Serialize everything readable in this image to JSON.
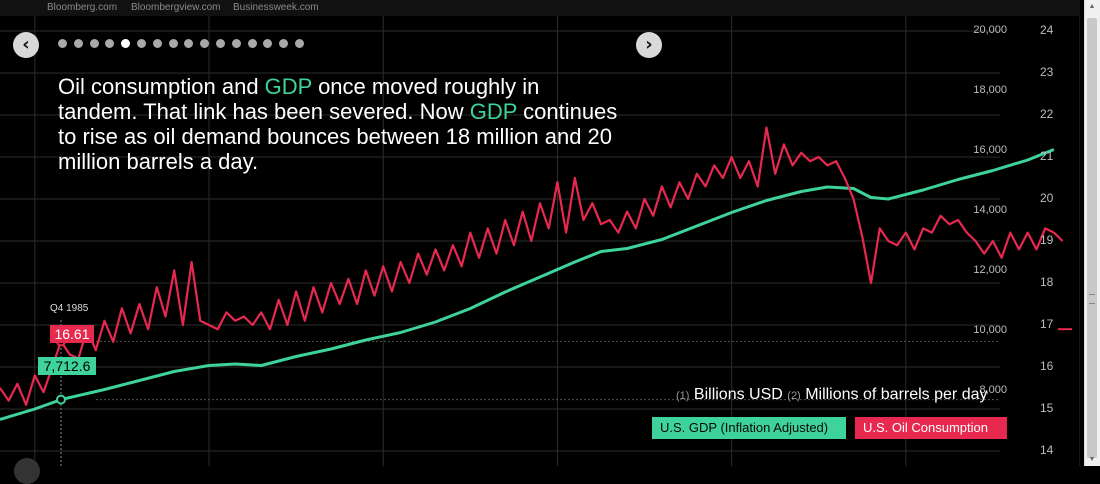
{
  "topbar": {
    "links": [
      "Bloomberg.com",
      "Bloombergview.com",
      "Businessweek.com"
    ]
  },
  "nav": {
    "prev_glyph": "‹",
    "next_glyph": "›",
    "dot_count": 16,
    "active_dot_index": 4
  },
  "headline": {
    "part1": "Oil consumption and ",
    "hl1": "GDP",
    "part2": " once moved roughly in tandem. That link has been severed. Now ",
    "hl2": "GDP",
    "part3": " continues to rise as oil demand bounces between 18 million and 20 million barrels a day."
  },
  "units": {
    "n1": "(1)",
    "label1": "Billions USD",
    "n2": "(2)",
    "label2": "Millions of barrels per day"
  },
  "legend": {
    "gdp": "U.S. GDP (Inflation Adjusted)",
    "oil": "U.S. Oil Consumption"
  },
  "tooltip": {
    "date": "Q4 1985",
    "oil_value": "16.61",
    "gdp_value": "7,712.6"
  },
  "colors": {
    "gdp": "#3ed39a",
    "oil": "#e8294f",
    "grid": "#2c2c2c",
    "background": "#000000"
  },
  "chart_data": {
    "type": "line",
    "x_range": [
      1984.0,
      2015.0
    ],
    "y_left": {
      "label": "Billions USD",
      "range": [
        6000,
        20000
      ],
      "ticks": [
        "8,000",
        "10,000",
        "12,000",
        "14,000",
        "16,000",
        "18,000",
        "20,000"
      ]
    },
    "y_right": {
      "label": "Millions of barrels per day",
      "range": [
        14,
        24
      ],
      "ticks": [
        "14",
        "15",
        "16",
        "17",
        "18",
        "19",
        "20",
        "21",
        "22",
        "23",
        "24"
      ]
    },
    "series": [
      {
        "name": "U.S. GDP (Inflation Adjusted)",
        "axis": "left",
        "x": [
          1984.0,
          1985.0,
          1985.75,
          1987.0,
          1988.0,
          1989.0,
          1990.0,
          1990.75,
          1991.5,
          1992.5,
          1993.5,
          1994.5,
          1995.5,
          1996.5,
          1997.5,
          1998.5,
          1999.5,
          2000.5,
          2001.25,
          2002.0,
          2003.0,
          2004.0,
          2005.0,
          2006.0,
          2007.0,
          2007.75,
          2008.5,
          2009.0,
          2009.5,
          2010.5,
          2011.5,
          2012.5,
          2013.5,
          2014.25
        ],
        "y": [
          7050,
          7400,
          7712.6,
          8050,
          8350,
          8650,
          8850,
          8900,
          8850,
          9150,
          9400,
          9700,
          9950,
          10300,
          10750,
          11300,
          11800,
          12300,
          12650,
          12750,
          13050,
          13500,
          13950,
          14350,
          14650,
          14800,
          14750,
          14450,
          14400,
          14700,
          15050,
          15350,
          15700,
          16050
        ]
      },
      {
        "name": "U.S. Oil Consumption",
        "axis": "right",
        "x": [
          1984.0,
          1984.25,
          1984.5,
          1984.75,
          1985.0,
          1985.25,
          1985.5,
          1985.75,
          1986.0,
          1986.25,
          1986.5,
          1986.75,
          1987.0,
          1987.25,
          1987.5,
          1987.75,
          1988.0,
          1988.25,
          1988.5,
          1988.75,
          1989.0,
          1989.25,
          1989.5,
          1989.75,
          1990.0,
          1990.25,
          1990.5,
          1990.75,
          1991.0,
          1991.25,
          1991.5,
          1991.75,
          1992.0,
          1992.25,
          1992.5,
          1992.75,
          1993.0,
          1993.25,
          1993.5,
          1993.75,
          1994.0,
          1994.25,
          1994.5,
          1994.75,
          1995.0,
          1995.25,
          1995.5,
          1995.75,
          1996.0,
          1996.25,
          1996.5,
          1996.75,
          1997.0,
          1997.25,
          1997.5,
          1997.75,
          1998.0,
          1998.25,
          1998.5,
          1998.75,
          1999.0,
          1999.25,
          1999.5,
          1999.75,
          2000.0,
          2000.25,
          2000.5,
          2000.75,
          2001.0,
          2001.25,
          2001.5,
          2001.75,
          2002.0,
          2002.25,
          2002.5,
          2002.75,
          2003.0,
          2003.25,
          2003.5,
          2003.75,
          2004.0,
          2004.25,
          2004.5,
          2004.75,
          2005.0,
          2005.25,
          2005.5,
          2005.75,
          2006.0,
          2006.25,
          2006.5,
          2006.75,
          2007.0,
          2007.25,
          2007.5,
          2007.75,
          2008.0,
          2008.25,
          2008.5,
          2008.75,
          2009.0,
          2009.25,
          2009.5,
          2009.75,
          2010.0,
          2010.25,
          2010.5,
          2010.75,
          2011.0,
          2011.25,
          2011.5,
          2011.75,
          2012.0,
          2012.25,
          2012.5,
          2012.75,
          2013.0,
          2013.25,
          2013.5,
          2013.75,
          2014.0,
          2014.25,
          2014.5
        ],
        "y": [
          15.5,
          15.2,
          15.6,
          15.1,
          15.8,
          15.4,
          16.0,
          16.61,
          16.3,
          16.2,
          16.9,
          16.4,
          17.1,
          16.6,
          17.4,
          16.8,
          17.5,
          16.9,
          17.9,
          17.2,
          18.3,
          17.0,
          18.5,
          17.1,
          17.0,
          16.9,
          17.3,
          17.1,
          17.2,
          17.0,
          17.3,
          16.9,
          17.6,
          17.0,
          17.8,
          17.1,
          17.9,
          17.3,
          18.0,
          17.5,
          18.1,
          17.5,
          18.3,
          17.7,
          18.4,
          17.8,
          18.5,
          18.0,
          18.7,
          18.2,
          18.8,
          18.3,
          18.9,
          18.4,
          19.2,
          18.6,
          19.3,
          18.7,
          19.5,
          18.9,
          19.7,
          19.0,
          19.9,
          19.3,
          20.4,
          19.2,
          20.5,
          19.5,
          19.9,
          19.4,
          19.5,
          19.2,
          19.7,
          19.3,
          20.0,
          19.6,
          20.3,
          19.8,
          20.4,
          20.0,
          20.6,
          20.3,
          20.8,
          20.5,
          21.0,
          20.5,
          20.9,
          20.3,
          21.7,
          20.6,
          21.3,
          20.8,
          21.1,
          20.9,
          21.0,
          20.8,
          20.9,
          20.5,
          20.0,
          19.1,
          18.0,
          19.3,
          19.0,
          18.9,
          19.2,
          18.8,
          19.3,
          19.2,
          19.6,
          19.4,
          19.5,
          19.2,
          19.0,
          18.7,
          19.0,
          18.6,
          19.2,
          18.8,
          19.2,
          18.8,
          19.3,
          19.2,
          19.0
        ]
      }
    ]
  }
}
